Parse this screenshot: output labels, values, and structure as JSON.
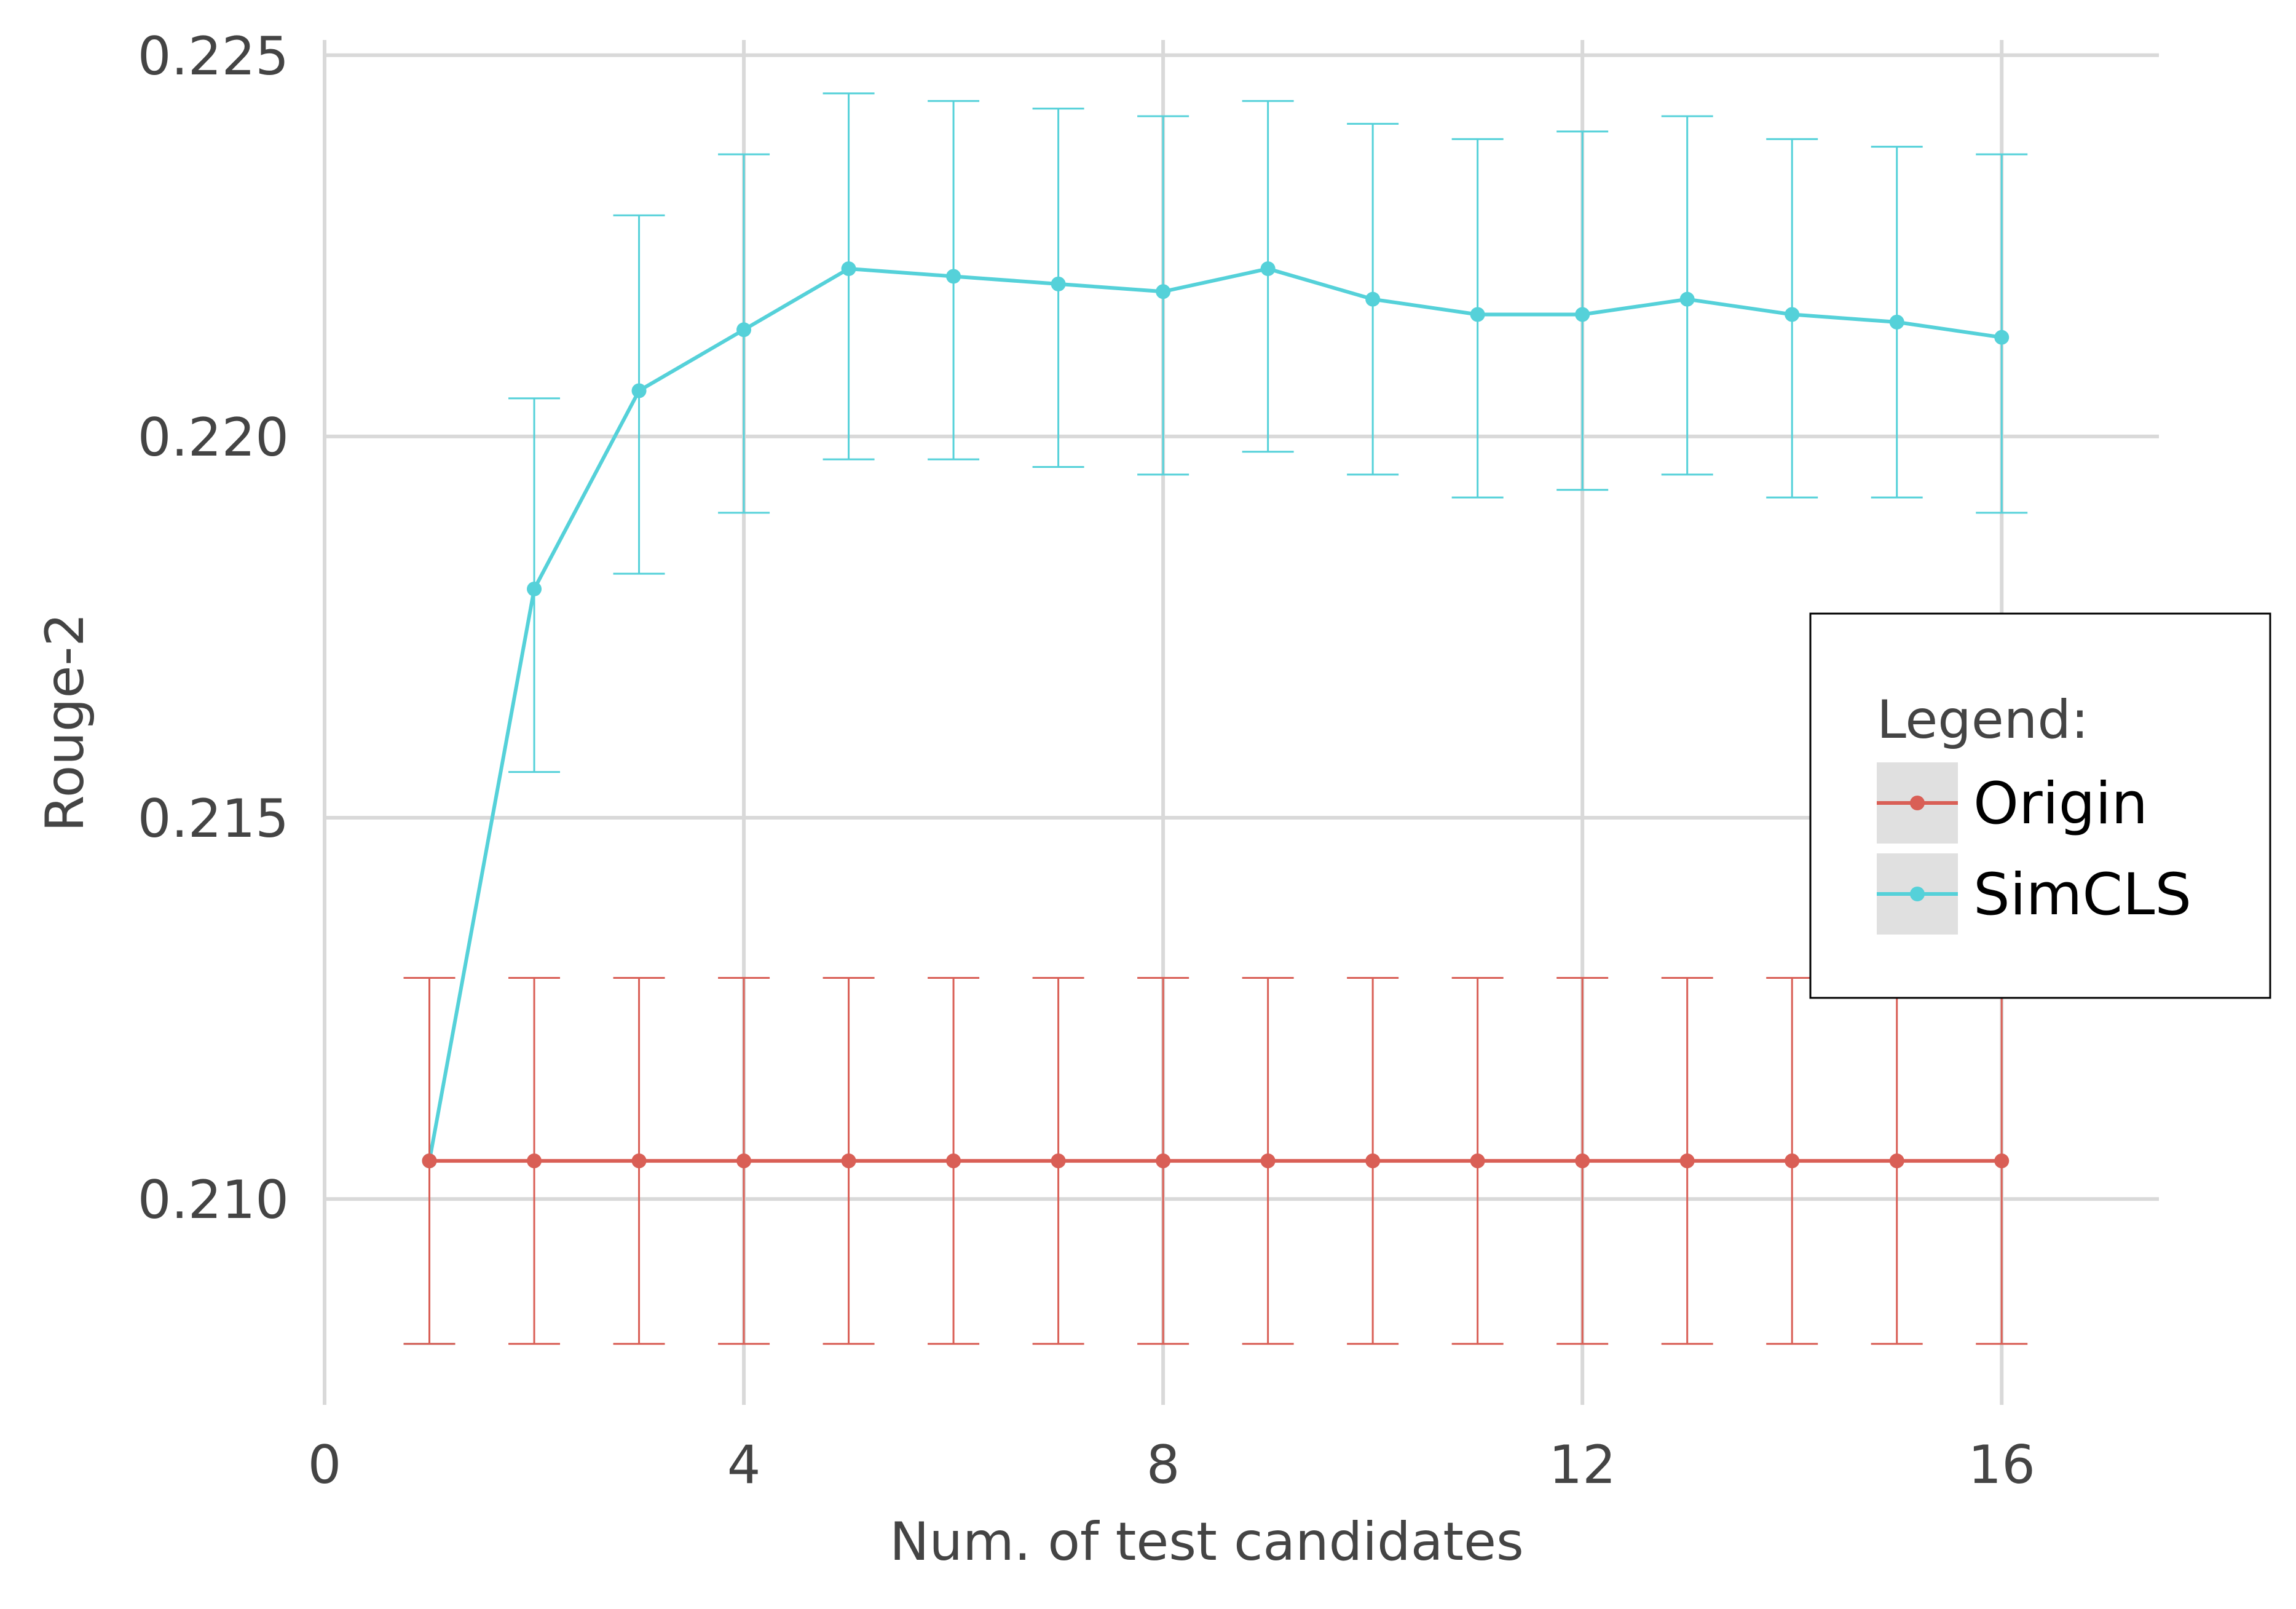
{
  "chart_data": {
    "type": "line",
    "title": "",
    "xlabel": "Num. of test candidates",
    "ylabel": "Rouge-2",
    "xlim": [
      0,
      17.5
    ],
    "ylim": [
      0.2073,
      0.2252
    ],
    "xticks": [
      0,
      4,
      8,
      12,
      16
    ],
    "xtick_labels": [
      "0",
      "4",
      "8",
      "12",
      "16"
    ],
    "yticks": [
      0.21,
      0.215,
      0.22,
      0.225
    ],
    "ytick_labels": [
      "0.210",
      "0.215",
      "0.220",
      "0.225"
    ],
    "grid": true,
    "legend": {
      "title": "Legend:",
      "position": "right"
    },
    "x": [
      1,
      2,
      3,
      4,
      5,
      6,
      7,
      8,
      9,
      10,
      11,
      12,
      13,
      14,
      15,
      16
    ],
    "series": [
      {
        "name": "Origin",
        "color": "#d95f56",
        "values": [
          0.2105,
          0.2105,
          0.2105,
          0.2105,
          0.2105,
          0.2105,
          0.2105,
          0.2105,
          0.2105,
          0.2105,
          0.2105,
          0.2105,
          0.2105,
          0.2105,
          0.2105,
          0.2105
        ],
        "err_low": [
          0.2081,
          0.2081,
          0.2081,
          0.2081,
          0.2081,
          0.2081,
          0.2081,
          0.2081,
          0.2081,
          0.2081,
          0.2081,
          0.2081,
          0.2081,
          0.2081,
          0.2081,
          0.2081
        ],
        "err_high": [
          0.2129,
          0.2129,
          0.2129,
          0.2129,
          0.2129,
          0.2129,
          0.2129,
          0.2129,
          0.2129,
          0.2129,
          0.2129,
          0.2129,
          0.2129,
          0.2129,
          0.2129,
          0.2129
        ]
      },
      {
        "name": "SimCLS",
        "color": "#55d1d9",
        "values": [
          0.2105,
          0.218,
          0.2206,
          0.2214,
          0.2222,
          0.2221,
          0.222,
          0.2219,
          0.2222,
          0.2218,
          0.2216,
          0.2216,
          0.2218,
          0.2216,
          0.2215,
          0.2213
        ],
        "err_low": [
          0.2081,
          0.2156,
          0.2182,
          0.219,
          0.2197,
          0.2197,
          0.2196,
          0.2195,
          0.2198,
          0.2195,
          0.2192,
          0.2193,
          0.2195,
          0.2192,
          0.2192,
          0.219
        ],
        "err_high": [
          0.2129,
          0.2205,
          0.2229,
          0.2237,
          0.2245,
          0.2244,
          0.2243,
          0.2242,
          0.2244,
          0.2241,
          0.2239,
          0.224,
          0.2242,
          0.2239,
          0.2238,
          0.2237
        ]
      }
    ]
  }
}
